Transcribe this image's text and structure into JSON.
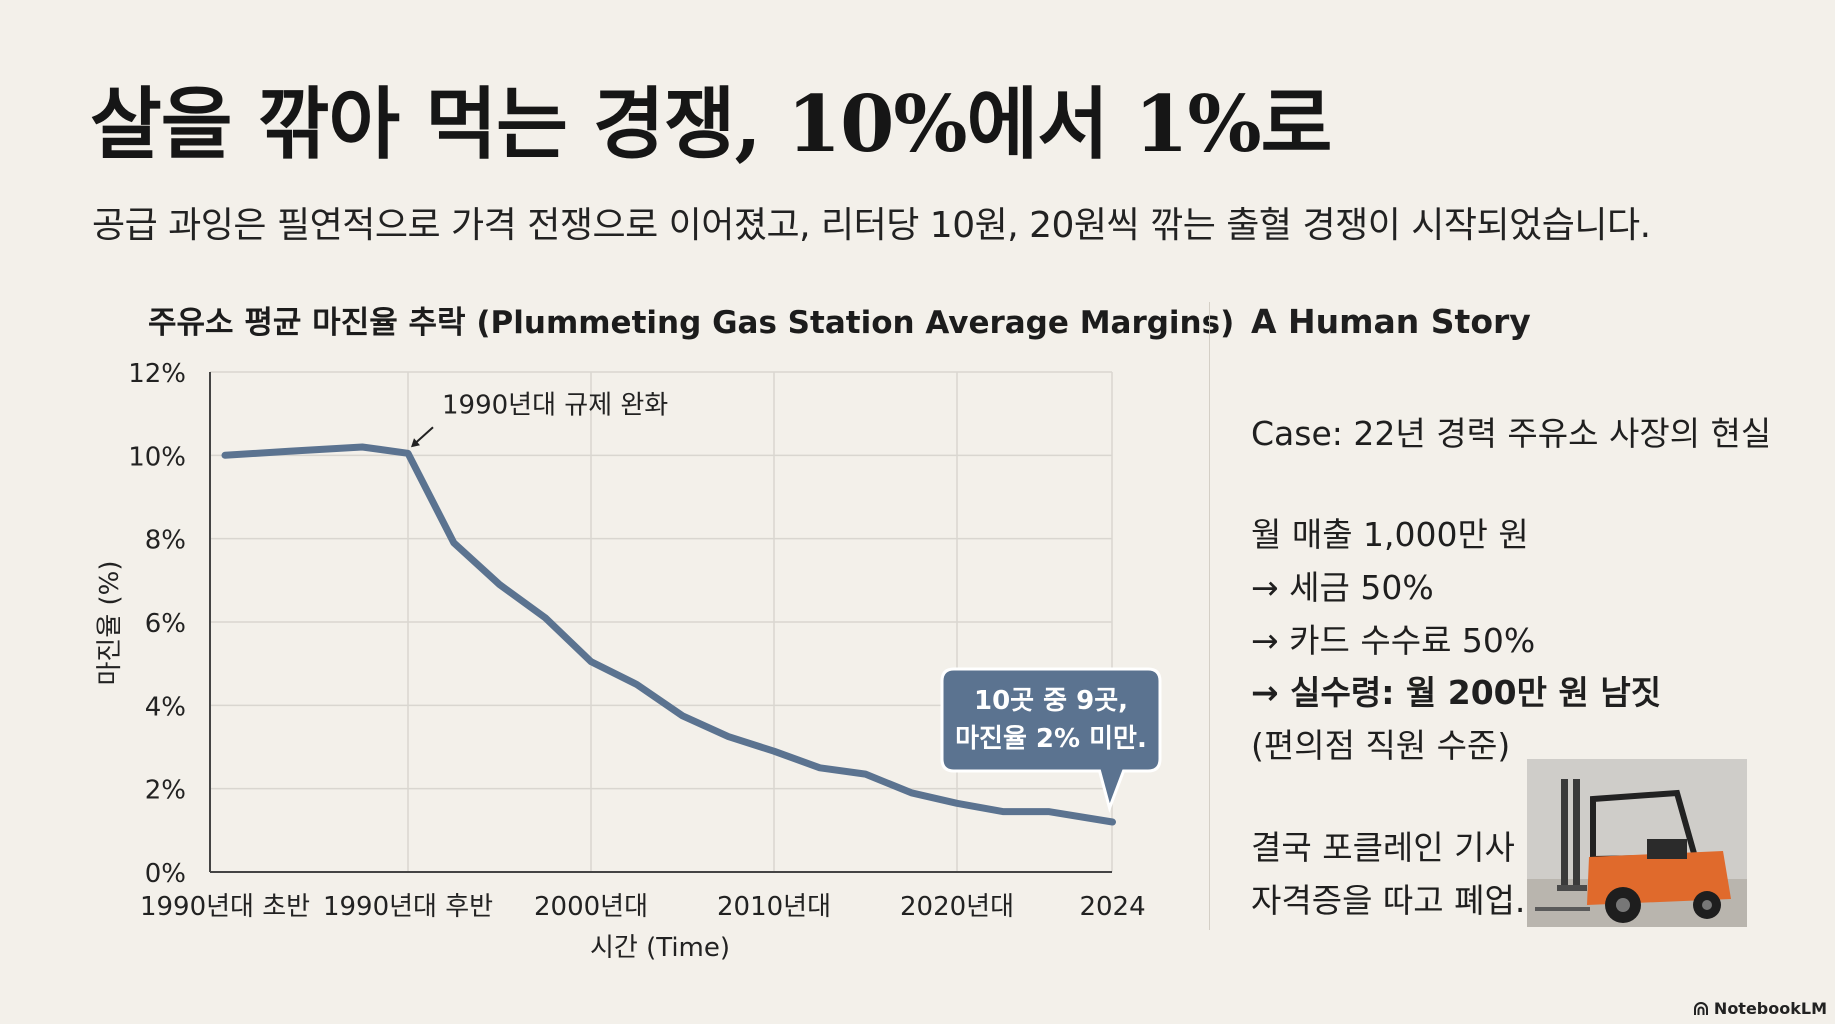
{
  "slide": {
    "title": "살을 깎아 먹는 경쟁, 10%에서 1%로",
    "subtitle": "공급 과잉은 필연적으로 가격 전쟁으로 이어졌고, 리터당 10원, 20원씩 깎는 출혈 경쟁이 시작되었습니다."
  },
  "chart_data": {
    "type": "line",
    "title": "주유소 평균 마진율 추락 (Plummeting Gas Station Average Margins)",
    "xlabel": "시간 (Time)",
    "ylabel": "마진율 (%)",
    "ylim": [
      0,
      12
    ],
    "yticks": [
      0,
      2,
      4,
      6,
      8,
      10,
      12
    ],
    "ytick_labels": [
      "0%",
      "2%",
      "4%",
      "6%",
      "8%",
      "10%",
      "12%"
    ],
    "x_categories": [
      "1990년대 초반",
      "1990년대 후반",
      "2000년대",
      "2010년대",
      "2020년대",
      "2024"
    ],
    "grid": true,
    "series": [
      {
        "name": "평균 마진율",
        "color": "#5b7390",
        "points": [
          {
            "x": 0.0,
            "y": 10.0
          },
          {
            "x": 0.35,
            "y": 10.1
          },
          {
            "x": 0.75,
            "y": 10.2
          },
          {
            "x": 1.0,
            "y": 10.05
          },
          {
            "x": 1.25,
            "y": 7.9
          },
          {
            "x": 1.5,
            "y": 6.9
          },
          {
            "x": 1.75,
            "y": 6.1
          },
          {
            "x": 2.0,
            "y": 5.05
          },
          {
            "x": 2.25,
            "y": 4.5
          },
          {
            "x": 2.5,
            "y": 3.75
          },
          {
            "x": 2.75,
            "y": 3.25
          },
          {
            "x": 3.0,
            "y": 2.9
          },
          {
            "x": 3.25,
            "y": 2.5
          },
          {
            "x": 3.5,
            "y": 2.35
          },
          {
            "x": 3.75,
            "y": 1.9
          },
          {
            "x": 4.0,
            "y": 1.65
          },
          {
            "x": 4.25,
            "y": 1.45
          },
          {
            "x": 4.5,
            "y": 1.45
          },
          {
            "x": 4.85,
            "y": 1.2
          }
        ]
      }
    ],
    "annotations": [
      {
        "text": "1990년대 규제 완화",
        "at": {
          "x": 1.0,
          "y": 10.05
        }
      },
      {
        "text_lines": [
          "10곳 중 9곳,",
          "마진율 2% 미만."
        ],
        "at": {
          "x": 4.85,
          "y": 1.2
        },
        "style": "callout"
      }
    ]
  },
  "story": {
    "heading": "A Human Story",
    "case": "Case: 22년 경력 주유소 사장의 현실",
    "lines": [
      "월 매출 1,000만 원",
      "→ 세금 50%",
      "→ 카드 수수료 50%",
      "→ 실수령: 월 200만 원 남짓",
      "(편의점 직원 수준)"
    ],
    "ending": [
      "결국 포클레인 기사",
      "자격증을 따고 폐업."
    ]
  },
  "colors": {
    "background": "#f3f0ea",
    "line": "#5b7390",
    "callout": "#5b7390",
    "grid": "#d9d6d0"
  },
  "footer": {
    "brand": "NotebookLM"
  }
}
